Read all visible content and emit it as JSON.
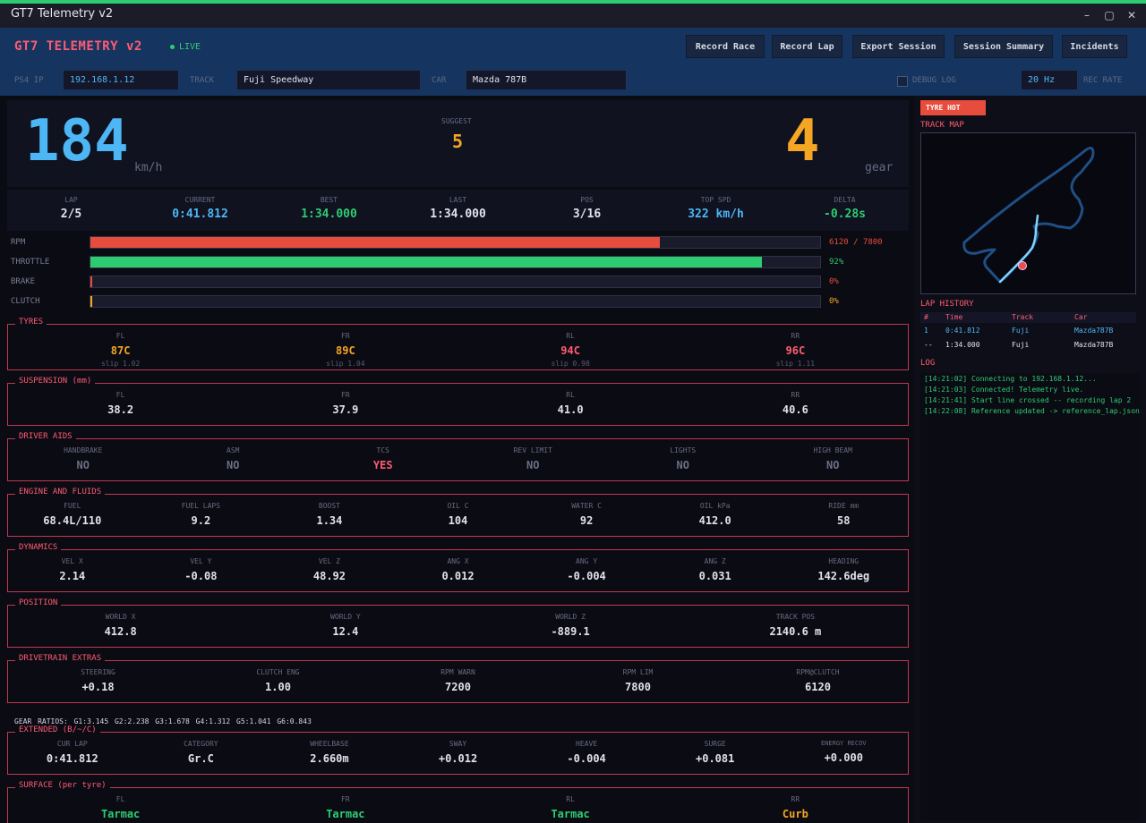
{
  "window": {
    "title": "GT7 Telemetry v2"
  },
  "header": {
    "app_title": "GT7 TELEMETRY v2",
    "live_label": "LIVE",
    "buttons": {
      "record_race": "Record Race",
      "record_lap": "Record Lap",
      "export_session": "Export Session",
      "session_summary": "Session Summary",
      "incidents": "Incidents"
    },
    "fields": {
      "ps4_ip_label": "PS4 IP",
      "ps4_ip_value": "192.168.1.12",
      "track_label": "TRACK",
      "track_value": "Fuji Speedway",
      "car_label": "CAR",
      "car_value": "Mazda 787B",
      "debug_log_label": "DEBUG LOG",
      "rate_value": "20 Hz",
      "rec_rate_label": "REC RATE"
    }
  },
  "speed": {
    "value": "184",
    "unit": "km/h",
    "suggest_label": "SUGGEST",
    "suggest_value": "5",
    "gear_value": "4",
    "gear_label": "gear"
  },
  "stats": [
    {
      "label": "LAP",
      "value": "2/5",
      "color": "#dfe2ec"
    },
    {
      "label": "CURRENT",
      "value": "0:41.812",
      "color": "#4db6f5"
    },
    {
      "label": "BEST",
      "value": "1:34.000",
      "color": "#2ecc71"
    },
    {
      "label": "LAST",
      "value": "1:34.000",
      "color": "#dfe2ec"
    },
    {
      "label": "POS",
      "value": "3/16",
      "color": "#dfe2ec"
    },
    {
      "label": "TOP SPD",
      "value": "322 km/h",
      "color": "#4db6f5"
    },
    {
      "label": "DELTA",
      "value": "-0.28s",
      "color": "#2ecc71"
    }
  ],
  "bars": {
    "rpm": {
      "label": "RPM",
      "value": "6120 / 7800",
      "fraction": 0.78,
      "color": "#e74c3c"
    },
    "throttle": {
      "label": "THROTTLE",
      "value": "92%",
      "fraction": 0.92,
      "color": "#2ecc71"
    },
    "brake": {
      "label": "BRAKE",
      "value": "0%",
      "fraction": 0,
      "color": "#e74c3c"
    },
    "clutch": {
      "label": "CLUTCH",
      "value": "0%",
      "fraction": 0,
      "color": "#f5a623"
    }
  },
  "tyres": {
    "title": "TYRES",
    "cells": [
      {
        "label": "FL",
        "value": "87C",
        "slip": "slip 1.02"
      },
      {
        "label": "FR",
        "value": "89C",
        "slip": "slip 1.04"
      },
      {
        "label": "RL",
        "value": "94C",
        "slip": "slip 0.98"
      },
      {
        "label": "RR",
        "value": "96C",
        "slip": "slip 1.11"
      }
    ]
  },
  "suspension": {
    "title": "SUSPENSION (mm)",
    "cells": [
      {
        "label": "FL",
        "value": "38.2"
      },
      {
        "label": "FR",
        "value": "37.9"
      },
      {
        "label": "RL",
        "value": "41.0"
      },
      {
        "label": "RR",
        "value": "40.6"
      }
    ]
  },
  "driver_aids": {
    "title": "DRIVER AIDS",
    "cells": [
      {
        "label": "HANDBRAKE",
        "value": "NO"
      },
      {
        "label": "ASM",
        "value": "NO"
      },
      {
        "label": "TCS",
        "value": "YES"
      },
      {
        "label": "REV LIMIT",
        "value": "NO"
      },
      {
        "label": "LIGHTS",
        "value": "NO"
      },
      {
        "label": "HIGH BEAM",
        "value": "NO"
      }
    ]
  },
  "engine": {
    "title": "ENGINE AND FLUIDS",
    "cells": [
      {
        "label": "FUEL",
        "value": "68.4L/110"
      },
      {
        "label": "FUEL LAPS",
        "value": "9.2"
      },
      {
        "label": "BOOST",
        "value": "1.34"
      },
      {
        "label": "OIL C",
        "value": "104"
      },
      {
        "label": "WATER C",
        "value": "92"
      },
      {
        "label": "OIL kPa",
        "value": "412.0"
      },
      {
        "label": "RIDE mm",
        "value": "58"
      }
    ]
  },
  "dynamics": {
    "title": "DYNAMICS",
    "cells": [
      {
        "label": "VEL X",
        "value": "2.14"
      },
      {
        "label": "VEL Y",
        "value": "-0.08"
      },
      {
        "label": "VEL Z",
        "value": "48.92"
      },
      {
        "label": "ANG X",
        "value": "0.012"
      },
      {
        "label": "ANG Y",
        "value": "-0.004"
      },
      {
        "label": "ANG Z",
        "value": "0.031"
      },
      {
        "label": "HEADING",
        "value": "142.6deg"
      }
    ]
  },
  "position": {
    "title": "POSITION",
    "cells": [
      {
        "label": "WORLD X",
        "value": "412.8"
      },
      {
        "label": "WORLD Y",
        "value": "12.4"
      },
      {
        "label": "WORLD Z",
        "value": "-889.1"
      },
      {
        "label": "TRACK POS",
        "value": "2140.6 m"
      }
    ]
  },
  "drivetrain": {
    "title": "DRIVETRAIN EXTRAS",
    "cells": [
      {
        "label": "STEERING",
        "value": "+0.18"
      },
      {
        "label": "CLUTCH ENG",
        "value": "1.00"
      },
      {
        "label": "RPM WARN",
        "value": "7200"
      },
      {
        "label": "RPM LIM",
        "value": "7800"
      },
      {
        "label": "RPM@CLUTCH",
        "value": "6120"
      }
    ]
  },
  "gear_ratios": "GEAR RATIOS:  G1:3.145  G2:2.238  G3:1.678  G4:1.312  G5:1.041  G6:0.843",
  "extended": {
    "title": "EXTENDED (B/~/C)",
    "cells": [
      {
        "label": "CUR LAP",
        "value": "0:41.812"
      },
      {
        "label": "CATEGORY",
        "value": "Gr.C"
      },
      {
        "label": "WHEELBASE",
        "value": "2.660m"
      },
      {
        "label": "SWAY",
        "value": "+0.012"
      },
      {
        "label": "HEAVE",
        "value": "-0.004"
      },
      {
        "label": "SURGE",
        "value": "+0.081"
      },
      {
        "label": "ENERGY RECOV",
        "value": "+0.000"
      }
    ]
  },
  "surface": {
    "title": "SURFACE (per tyre)",
    "cells": [
      {
        "label": "FL",
        "value": "Tarmac"
      },
      {
        "label": "FR",
        "value": "Tarmac"
      },
      {
        "label": "RL",
        "value": "Tarmac"
      },
      {
        "label": "RR",
        "value": "Curb"
      }
    ]
  },
  "right": {
    "tyre_hot_badge": "TYRE HOT",
    "track_map_title": "TRACK MAP",
    "lap_history_title": "LAP HISTORY",
    "lap_history_headers": [
      "#",
      "Time",
      "Track",
      "Car"
    ],
    "lap_history_rows": [
      {
        "n": "1",
        "time": "0:41.812",
        "track": "Fuji",
        "car": "Mazda787B"
      },
      {
        "n": "--",
        "time": "1:34.000",
        "track": "Fuji",
        "car": "Mazda787B"
      }
    ],
    "log_title": "LOG",
    "log_lines": [
      "[14:21:02] Connecting to 192.168.1.12...",
      "[14:21:03] Connected! Telemetry live.",
      "[14:21:41] Start line crossed -- recording lap 2",
      "[14:22:08] Reference updated -> reference_lap.json"
    ]
  },
  "colors": {
    "accent_red": "#ff5c72",
    "speed_blue": "#4db6f5",
    "orange": "#f5a623",
    "green": "#2ecc71",
    "header_blue": "#15345f"
  }
}
